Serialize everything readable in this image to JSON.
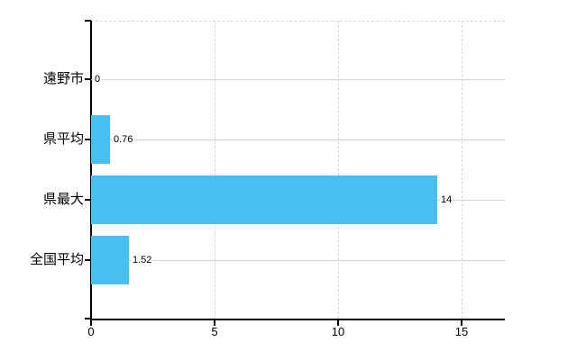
{
  "chart_data": {
    "type": "bar",
    "orientation": "horizontal",
    "title": "",
    "categories": [
      "遠野市",
      "県平均",
      "県最大",
      "全国平均"
    ],
    "values": [
      0,
      0.76,
      14,
      1.52
    ],
    "value_labels": [
      "0",
      "0.76",
      "14",
      "1.52"
    ],
    "x_ticks": [
      "0",
      "5",
      "10",
      "15"
    ],
    "x_tick_values": [
      0,
      5,
      10,
      15
    ],
    "xlim": [
      0,
      16.75
    ],
    "grid": true,
    "legend": false,
    "colors": {
      "bar": "#47BFEF",
      "axis": "#000000",
      "h_gridline": "#CFD8CF",
      "v_gridline": "#D8D8D8",
      "text": "#000000",
      "background": "#FFFFFF"
    }
  }
}
